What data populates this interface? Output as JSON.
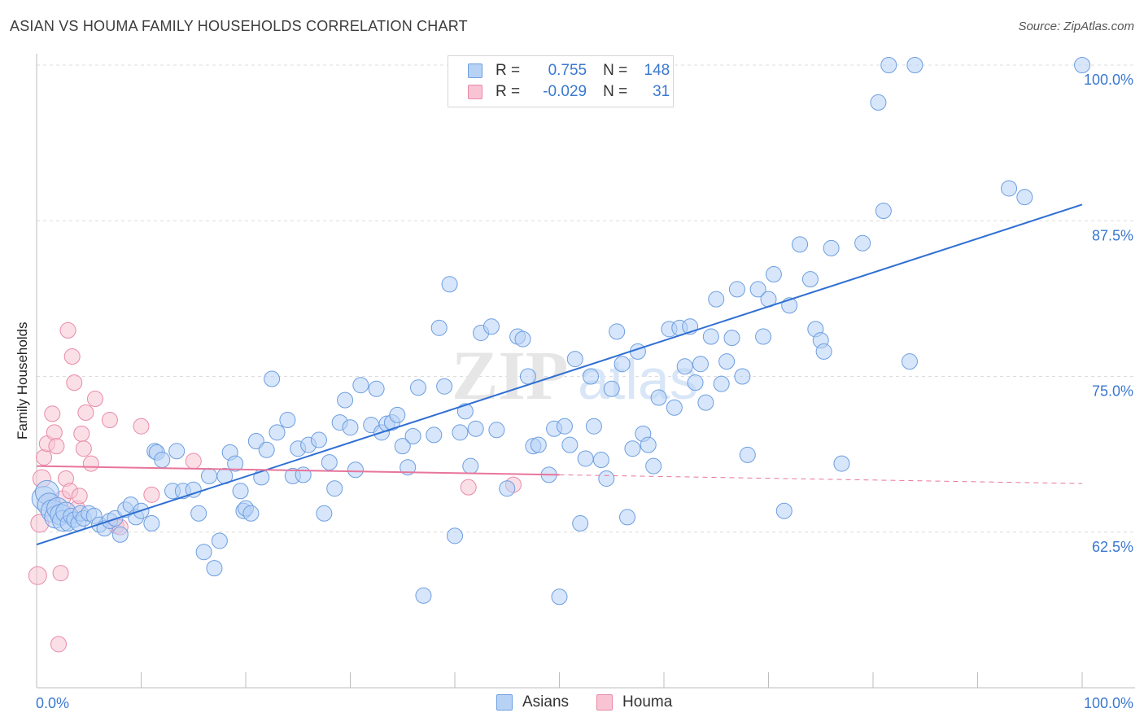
{
  "title": "ASIAN VS HOUMA FAMILY HOUSEHOLDS CORRELATION CHART",
  "source": "Source: ZipAtlas.com",
  "watermark": {
    "zip": "ZIP",
    "atlas": "atlas"
  },
  "legend": {
    "rows": [
      {
        "r_label": "R =",
        "r_value": "0.755",
        "n_label": "N =",
        "n_value": "148"
      },
      {
        "r_label": "R =",
        "r_value": "-0.029",
        "n_label": "N =",
        "n_value": "31"
      }
    ]
  },
  "bottom_legend": [
    "Asians",
    "Houma"
  ],
  "colors": {
    "blue_fill": "#b7d2f5",
    "blue_stroke": "#6d9ee0",
    "blue_line": "#2f6fd3",
    "pink_fill": "#f8c4d3",
    "pink_stroke": "#e88aa8",
    "pink_line": "#e8759b",
    "tick_label": "#3a78d0",
    "grid": "#dcdcdc"
  },
  "chart_data": {
    "type": "scatter",
    "title": "ASIAN VS HOUMA FAMILY HOUSEHOLDS CORRELATION CHART",
    "xlabel": "",
    "ylabel": "Family Households",
    "xlim": [
      0,
      100
    ],
    "ylim": [
      50,
      100
    ],
    "x_tick_labels": [
      "0.0%",
      "100.0%"
    ],
    "y_ticks": [
      62.5,
      75.0,
      87.5,
      100.0
    ],
    "y_tick_labels": [
      "62.5%",
      "75.0%",
      "87.5%",
      "100.0%"
    ],
    "grid": "horizontal dashed",
    "legend_position": "top-center",
    "series": [
      {
        "name": "Asians",
        "r": 0.755,
        "n": 148,
        "trend": {
          "x": [
            0,
            100
          ],
          "y": [
            61.5,
            88.8
          ]
        },
        "points": [
          [
            0.7,
            65.2
          ],
          [
            1.0,
            65.7
          ],
          [
            1.2,
            64.7
          ],
          [
            1.5,
            64.2
          ],
          [
            1.8,
            63.7
          ],
          [
            2.0,
            64.4
          ],
          [
            2.3,
            63.9
          ],
          [
            2.5,
            63.4
          ],
          [
            2.8,
            64.1
          ],
          [
            3.0,
            63.2
          ],
          [
            3.3,
            63.8
          ],
          [
            3.6,
            63.5
          ],
          [
            4.0,
            63.2
          ],
          [
            4.2,
            64.0
          ],
          [
            4.5,
            63.6
          ],
          [
            5.0,
            64.0
          ],
          [
            5.5,
            63.8
          ],
          [
            6.0,
            63.1
          ],
          [
            6.5,
            62.8
          ],
          [
            7.0,
            63.4
          ],
          [
            7.5,
            63.6
          ],
          [
            8.0,
            62.3
          ],
          [
            8.5,
            64.3
          ],
          [
            9.0,
            64.7
          ],
          [
            9.5,
            63.7
          ],
          [
            10.0,
            64.2
          ],
          [
            11.0,
            63.2
          ],
          [
            11.3,
            69.0
          ],
          [
            11.5,
            68.9
          ],
          [
            12.0,
            68.3
          ],
          [
            13.0,
            65.8
          ],
          [
            13.4,
            69.0
          ],
          [
            14.0,
            65.8
          ],
          [
            15.0,
            65.9
          ],
          [
            15.5,
            64.0
          ],
          [
            16.0,
            60.9
          ],
          [
            16.5,
            67.0
          ],
          [
            17.0,
            59.6
          ],
          [
            17.5,
            61.8
          ],
          [
            18.0,
            67.0
          ],
          [
            18.5,
            68.9
          ],
          [
            19.0,
            68.0
          ],
          [
            19.5,
            65.8
          ],
          [
            19.8,
            64.2
          ],
          [
            20.0,
            64.4
          ],
          [
            20.5,
            64.0
          ],
          [
            21.0,
            69.8
          ],
          [
            21.5,
            66.9
          ],
          [
            22.0,
            69.1
          ],
          [
            22.5,
            74.8
          ],
          [
            23.0,
            70.5
          ],
          [
            24.0,
            71.5
          ],
          [
            24.5,
            67.0
          ],
          [
            25.0,
            69.2
          ],
          [
            25.5,
            67.1
          ],
          [
            26.0,
            69.5
          ],
          [
            27.0,
            69.9
          ],
          [
            27.5,
            64.0
          ],
          [
            28.0,
            68.1
          ],
          [
            28.5,
            66.0
          ],
          [
            29.0,
            71.3
          ],
          [
            29.5,
            73.1
          ],
          [
            30.0,
            70.9
          ],
          [
            30.5,
            67.5
          ],
          [
            31.0,
            74.3
          ],
          [
            32.0,
            71.1
          ],
          [
            32.5,
            74.0
          ],
          [
            33.0,
            70.5
          ],
          [
            33.5,
            71.2
          ],
          [
            34.0,
            71.3
          ],
          [
            34.5,
            71.9
          ],
          [
            35.0,
            69.4
          ],
          [
            35.5,
            67.7
          ],
          [
            36.0,
            70.2
          ],
          [
            36.5,
            74.1
          ],
          [
            37.0,
            57.4
          ],
          [
            38.0,
            70.3
          ],
          [
            38.5,
            78.9
          ],
          [
            39.0,
            74.2
          ],
          [
            39.5,
            82.4
          ],
          [
            40.0,
            62.2
          ],
          [
            40.5,
            70.5
          ],
          [
            41.0,
            72.2
          ],
          [
            41.5,
            67.8
          ],
          [
            42.0,
            70.8
          ],
          [
            42.5,
            78.5
          ],
          [
            43.5,
            79.0
          ],
          [
            44.0,
            70.7
          ],
          [
            45.0,
            66.0
          ],
          [
            46.0,
            78.2
          ],
          [
            46.5,
            78.0
          ],
          [
            47.0,
            75.0
          ],
          [
            47.5,
            69.4
          ],
          [
            48.0,
            69.5
          ],
          [
            49.0,
            67.1
          ],
          [
            49.5,
            70.8
          ],
          [
            50.0,
            57.3
          ],
          [
            50.5,
            71.0
          ],
          [
            51.0,
            69.5
          ],
          [
            51.5,
            76.4
          ],
          [
            52.0,
            63.2
          ],
          [
            52.5,
            68.4
          ],
          [
            53.0,
            75.0
          ],
          [
            53.3,
            71.0
          ],
          [
            54.0,
            68.3
          ],
          [
            54.5,
            66.8
          ],
          [
            55.0,
            74.0
          ],
          [
            55.5,
            78.6
          ],
          [
            56.0,
            76.0
          ],
          [
            56.5,
            63.7
          ],
          [
            57.0,
            69.2
          ],
          [
            57.5,
            77.0
          ],
          [
            58.0,
            70.4
          ],
          [
            58.5,
            69.5
          ],
          [
            59.0,
            67.8
          ],
          [
            59.5,
            73.3
          ],
          [
            60.5,
            78.8
          ],
          [
            61.0,
            72.5
          ],
          [
            61.5,
            78.9
          ],
          [
            62.0,
            75.8
          ],
          [
            62.5,
            79.0
          ],
          [
            63.0,
            74.5
          ],
          [
            63.5,
            76.0
          ],
          [
            64.0,
            72.9
          ],
          [
            64.5,
            78.2
          ],
          [
            65.0,
            81.2
          ],
          [
            65.5,
            74.4
          ],
          [
            66.0,
            76.2
          ],
          [
            66.5,
            78.1
          ],
          [
            67.0,
            82.0
          ],
          [
            67.5,
            75.0
          ],
          [
            68.0,
            68.7
          ],
          [
            69.0,
            82.0
          ],
          [
            69.5,
            78.2
          ],
          [
            70.0,
            81.2
          ],
          [
            70.5,
            83.2
          ],
          [
            71.5,
            64.2
          ],
          [
            72.0,
            80.7
          ],
          [
            73.0,
            85.6
          ],
          [
            74.0,
            82.8
          ],
          [
            74.5,
            78.8
          ],
          [
            75.0,
            77.9
          ],
          [
            75.3,
            77.0
          ],
          [
            76.0,
            85.3
          ],
          [
            77.0,
            68.0
          ],
          [
            79.0,
            85.7
          ],
          [
            80.5,
            97.0
          ],
          [
            81.0,
            88.3
          ],
          [
            81.5,
            100.0
          ],
          [
            83.5,
            76.2
          ],
          [
            84.0,
            100.0
          ],
          [
            93.0,
            90.1
          ],
          [
            94.5,
            89.4
          ],
          [
            100.0,
            100.0
          ]
        ]
      },
      {
        "name": "Houma",
        "r": -0.029,
        "n": 31,
        "trend": {
          "x": [
            0,
            50
          ],
          "y": [
            67.8,
            67.1
          ]
        },
        "trend_dashed_to": {
          "x": [
            50,
            100
          ],
          "y": [
            67.1,
            66.4
          ]
        },
        "points": [
          [
            0.1,
            59.0
          ],
          [
            0.3,
            63.2
          ],
          [
            0.5,
            66.8
          ],
          [
            0.7,
            68.5
          ],
          [
            1.0,
            69.6
          ],
          [
            1.2,
            65.0
          ],
          [
            1.5,
            72.0
          ],
          [
            1.7,
            70.5
          ],
          [
            1.9,
            69.4
          ],
          [
            2.1,
            53.5
          ],
          [
            2.3,
            59.2
          ],
          [
            2.5,
            65.2
          ],
          [
            2.8,
            66.8
          ],
          [
            3.0,
            78.7
          ],
          [
            3.2,
            65.8
          ],
          [
            3.4,
            76.6
          ],
          [
            3.6,
            74.5
          ],
          [
            3.9,
            64.4
          ],
          [
            4.1,
            65.4
          ],
          [
            4.3,
            70.4
          ],
          [
            4.5,
            69.2
          ],
          [
            4.7,
            72.1
          ],
          [
            5.2,
            68.0
          ],
          [
            5.6,
            73.2
          ],
          [
            7.0,
            71.5
          ],
          [
            7.6,
            63.0
          ],
          [
            8.0,
            62.9
          ],
          [
            10.0,
            71.0
          ],
          [
            11.0,
            65.5
          ],
          [
            15.0,
            68.2
          ],
          [
            41.3,
            66.1
          ],
          [
            45.6,
            66.3
          ]
        ]
      }
    ]
  }
}
